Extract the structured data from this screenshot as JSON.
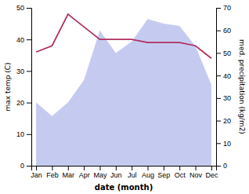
{
  "chart_data": {
    "type": "line",
    "categories": [
      "Jan",
      "Feb",
      "Mar",
      "Apr",
      "May",
      "Jun",
      "Jul",
      "Aug",
      "Sep",
      "Oct",
      "Nov",
      "Dec"
    ],
    "series": [
      {
        "type": "area",
        "axis": "y2",
        "color": "#c5cbf0",
        "values": [
          28,
          22,
          28,
          38,
          60,
          50,
          55,
          65,
          63,
          62,
          53,
          36
        ]
      },
      {
        "type": "line",
        "color": "#b03060",
        "values": [
          36,
          38,
          48,
          44,
          40,
          40,
          40,
          39,
          39,
          39,
          38,
          34
        ]
      }
    ],
    "xlabel": "date (month)",
    "ylabel": "max temp (C)",
    "y2label": "med. precipitation (kg/m2)",
    "ylim": [
      0,
      50
    ],
    "yticks": [
      0,
      10,
      20,
      30,
      40,
      50
    ],
    "y2lim": [
      0,
      70
    ],
    "y2ticks": [
      0,
      10,
      20,
      30,
      40,
      50,
      60,
      70
    ],
    "grid": false
  }
}
